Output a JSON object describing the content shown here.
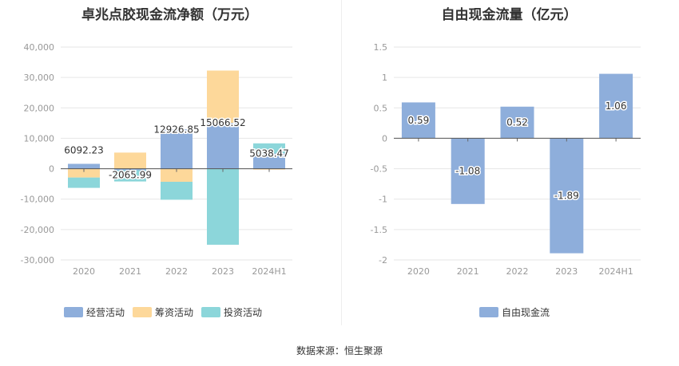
{
  "chart_data": [
    {
      "type": "bar",
      "stacked": true,
      "title": "卓兆点胶现金流净额（万元）",
      "categories": [
        "2020",
        "2021",
        "2022",
        "2023",
        "2024H1"
      ],
      "ylim": [
        -30000,
        40000
      ],
      "yticks": [
        40000,
        30000,
        20000,
        10000,
        0,
        -10000,
        -20000,
        -30000
      ],
      "ytick_labels": [
        "40,000",
        "30,000",
        "20,000",
        "10,000",
        "0",
        "-10,000",
        "-20,000",
        "-30,000"
      ],
      "grid": true,
      "legend": "bottom",
      "series": [
        {
          "name": "经营活动",
          "color": "#8eaedb",
          "values": [
            1600,
            -500,
            12926.85,
            15066.52,
            5038.47
          ]
        },
        {
          "name": "筹资活动",
          "color": "#fdd89a",
          "values": [
            -2900,
            5300,
            -4300,
            17200,
            -300
          ]
        },
        {
          "name": "投资活动",
          "color": "#8cd6da",
          "values": [
            -3400,
            -3700,
            -5900,
            -25000,
            3300
          ]
        }
      ],
      "net_values": [
        6092.23,
        -2065.99,
        12926.85,
        15066.52,
        5038.47
      ],
      "data_labels": [
        "6092.23",
        "-2065.99",
        "12926.85",
        "15066.52",
        "5038.47"
      ]
    },
    {
      "type": "bar",
      "title": "自由现金流量（亿元）",
      "categories": [
        "2020",
        "2021",
        "2022",
        "2023",
        "2024H1"
      ],
      "ylim": [
        -2,
        1.5
      ],
      "yticks": [
        1.5,
        1,
        0.5,
        0,
        -0.5,
        -1,
        -1.5,
        -2
      ],
      "ytick_labels": [
        "1.5",
        "1",
        "0.5",
        "0",
        "-0.5",
        "-1",
        "-1.5",
        "-2"
      ],
      "grid": true,
      "legend": "bottom",
      "series": [
        {
          "name": "自由现金流",
          "color": "#8eaedb",
          "values": [
            0.59,
            -1.08,
            0.52,
            -1.89,
            1.06
          ]
        }
      ],
      "data_labels": [
        "0.59",
        "-1.08",
        "0.52",
        "-1.89",
        "1.06"
      ]
    }
  ],
  "source_text": "数据来源：恒生聚源"
}
